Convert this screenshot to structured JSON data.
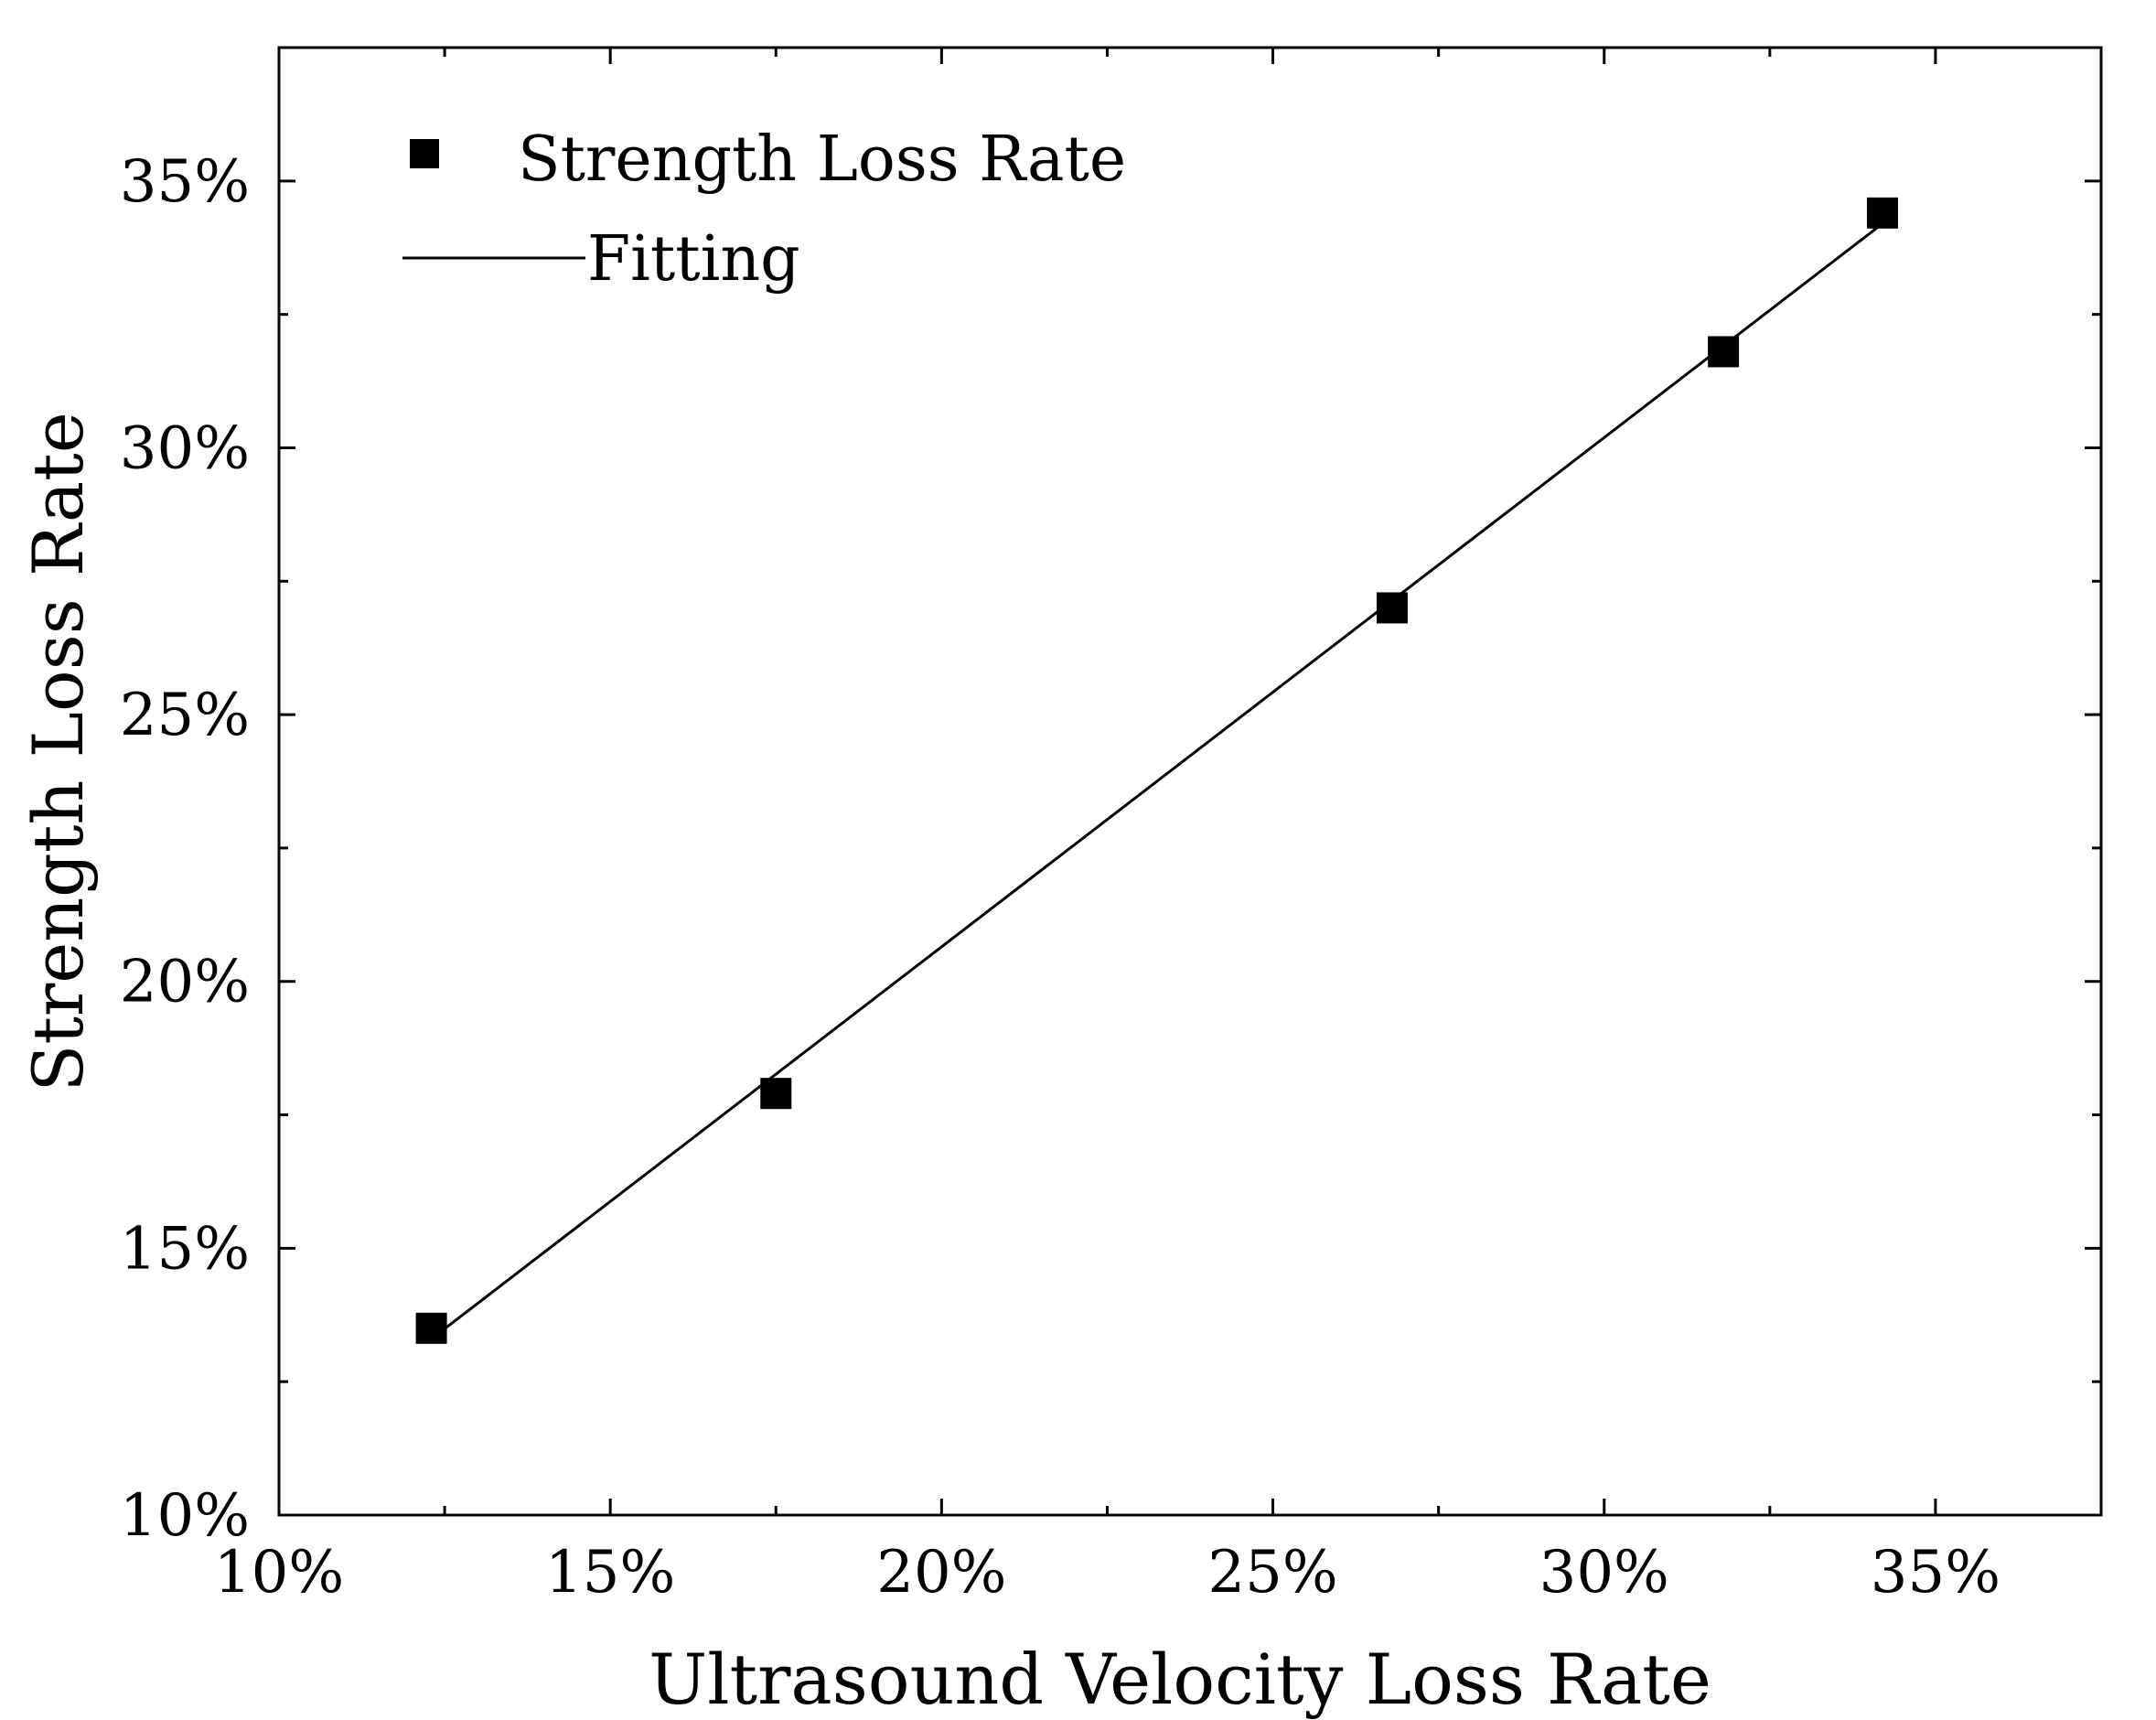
{
  "chart_data": {
    "type": "scatter",
    "title": "",
    "xlabel": "Ultrasound Velocity Loss Rate",
    "ylabel": "Strength Loss Rate",
    "xlim": [
      10,
      37.5
    ],
    "ylim": [
      10,
      37.5
    ],
    "x_ticks": [
      10,
      15,
      20,
      25,
      30,
      35
    ],
    "y_ticks": [
      10,
      15,
      20,
      25,
      30,
      35
    ],
    "x_tick_labels": [
      "10%",
      "15%",
      "20%",
      "25%",
      "30%",
      "35%"
    ],
    "y_tick_labels": [
      "10%",
      "15%",
      "20%",
      "25%",
      "30%",
      "35%"
    ],
    "grid": false,
    "legend_position": "top-left",
    "series": [
      {
        "name": "Strength Loss Rate",
        "kind": "scatter",
        "marker": "square",
        "color": "#000000",
        "x": [
          12.3,
          17.5,
          26.8,
          31.8,
          34.2
        ],
        "y": [
          13.5,
          17.9,
          27.0,
          31.8,
          34.4
        ]
      },
      {
        "name": "Fitting",
        "kind": "line",
        "color": "#000000",
        "x": [
          12.3,
          34.2
        ],
        "y": [
          13.3,
          34.2
        ]
      }
    ]
  }
}
